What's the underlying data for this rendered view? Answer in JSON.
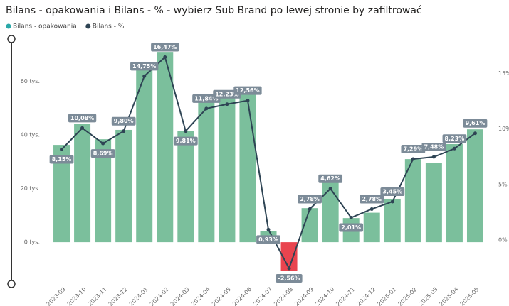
{
  "chart_data": {
    "type": "bar_line",
    "title": "Bilans - opakowania i Bilans - % - wybierz Sub Brand po lewej stronie by zafiltrować",
    "categories": [
      "2023-09",
      "2023-10",
      "2023-11",
      "2023-12",
      "2024-01",
      "2024-02",
      "2024-03",
      "2024-04",
      "2024-05",
      "2024-06",
      "2024-07",
      "2024-08",
      "2024-09",
      "2024-10",
      "2024-11",
      "2024-12",
      "2025-01",
      "2025-02",
      "2025-03",
      "2025-04",
      "2025-05"
    ],
    "series": [
      {
        "name": "Bilans - opakowania",
        "type": "bar",
        "color": "#7bbf9c",
        "legend_color": "#2aa8a8",
        "negative_color": "#e9444f",
        "values": [
          36300,
          44200,
          38400,
          41900,
          64600,
          71000,
          41600,
          53200,
          54600,
          55400,
          4200,
          -10600,
          12700,
          22300,
          9000,
          11000,
          16200,
          31000,
          29700,
          36600,
          42100
        ]
      },
      {
        "name": "Bilans - %",
        "type": "line",
        "axis": "y2",
        "color": "#2e4454",
        "values": [
          8.15,
          10.08,
          8.69,
          9.8,
          14.75,
          16.47,
          9.81,
          11.84,
          12.23,
          12.56,
          0.93,
          -2.56,
          2.78,
          4.62,
          2.01,
          2.78,
          3.45,
          7.29,
          7.48,
          8.23,
          9.61
        ],
        "value_labels": [
          "8,15%",
          "10,08%",
          "8,69%",
          "9,80%",
          "14,75%",
          "16,47%",
          "9,81%",
          "11,84%",
          "12,23%",
          "12,56%",
          "0,93%",
          "-2,56%",
          "2,78%",
          "4,62%",
          "2,01%",
          "2,78%",
          "3,45%",
          "7,29%",
          "7,48%",
          "8,23%",
          "9,61%"
        ]
      }
    ],
    "ylim": [
      -15600,
      75800
    ],
    "yticks": [
      {
        "value": 0,
        "label": "0 tys."
      },
      {
        "value": 20000,
        "label": "20 tys."
      },
      {
        "value": 40000,
        "label": "40 tys."
      },
      {
        "value": 60000,
        "label": "60 tys."
      }
    ],
    "y2lim": [
      -3.97,
      18.1
    ],
    "y2ticks": [
      {
        "value": 0,
        "label": "0%"
      },
      {
        "value": 5,
        "label": "5%"
      },
      {
        "value": 10,
        "label": "10%"
      },
      {
        "value": 15,
        "label": "15%"
      }
    ]
  }
}
